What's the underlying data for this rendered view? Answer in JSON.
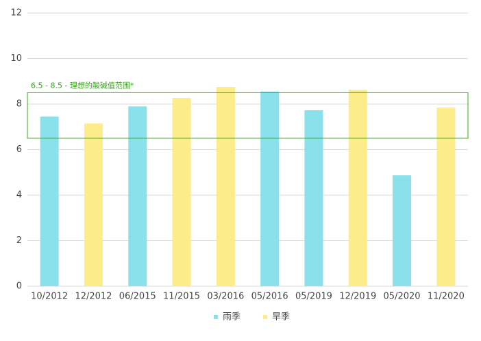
{
  "chart_data": {
    "type": "bar",
    "categories": [
      "10/2012",
      "12/2012",
      "06/2015",
      "11/2015",
      "03/2016",
      "05/2016",
      "05/2019",
      "12/2019",
      "05/2020",
      "11/2020"
    ],
    "series": [
      {
        "name": "雨季",
        "color": "#8ae1ec",
        "values": [
          7.45,
          null,
          7.9,
          null,
          null,
          8.55,
          7.73,
          null,
          4.87,
          null
        ]
      },
      {
        "name": "旱季",
        "color": "#fdec8a",
        "values": [
          null,
          7.15,
          null,
          8.27,
          8.75,
          null,
          null,
          8.63,
          null,
          7.85
        ]
      }
    ],
    "ylim": [
      0,
      12
    ],
    "yticks": [
      0,
      2,
      4,
      6,
      8,
      10,
      12
    ],
    "grid": true,
    "range_band": {
      "label": "6.5 - 8.5 - 理想的酸碱值范围*",
      "from": 6.5,
      "to": 8.5,
      "color": "#33aa11"
    },
    "legend": "bottom"
  }
}
